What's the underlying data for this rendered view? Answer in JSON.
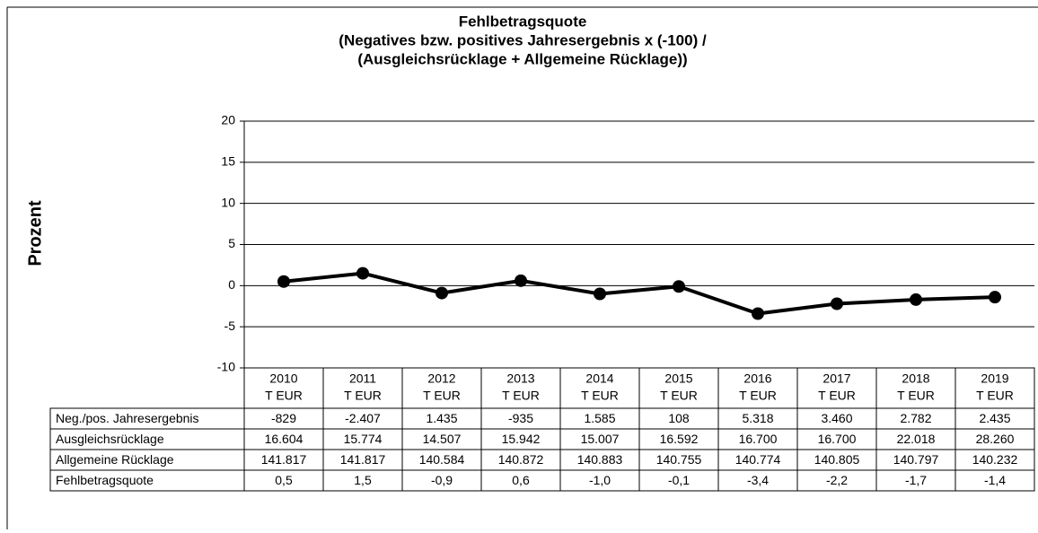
{
  "chart_data": {
    "type": "line",
    "title": "Fehlbetragsquote",
    "subtitle": [
      "(Negatives bzw. positives Jahresergebnis  x (-100) /",
      "(Ausgleichsrücklage + Allgemeine Rücklage))"
    ],
    "y_label": "Prozent",
    "categories": [
      "2010",
      "2011",
      "2012",
      "2013",
      "2014",
      "2015",
      "2016",
      "2017",
      "2018",
      "2019"
    ],
    "category_unit": "T EUR",
    "series": [
      {
        "name": "Fehlbetragsquote",
        "color": "#000000",
        "values": [
          0.5,
          1.5,
          -0.9,
          0.6,
          -1.0,
          -0.1,
          -3.4,
          -2.2,
          -1.7,
          -1.4
        ],
        "value_labels": [
          "0,5",
          "1,5",
          "-0,9",
          "0,6",
          "-1,0",
          "-0,1",
          "-3,4",
          "-2,2",
          "-1,7",
          "-1,4"
        ]
      }
    ],
    "ylim": [
      -10,
      20
    ],
    "yticks": [
      -10,
      -5,
      0,
      5,
      10,
      15,
      20
    ],
    "grid": true,
    "table": {
      "rows": [
        {
          "label": "Neg./pos. Jahresergebnis",
          "values": [
            "-829",
            "-2.407",
            "1.435",
            "-935",
            "1.585",
            "108",
            "5.318",
            "3.460",
            "2.782",
            "2.435"
          ]
        },
        {
          "label": "Ausgleichsrücklage",
          "values": [
            "16.604",
            "15.774",
            "14.507",
            "15.942",
            "15.007",
            "16.592",
            "16.700",
            "16.700",
            "22.018",
            "28.260"
          ]
        },
        {
          "label": "Allgemeine Rücklage",
          "values": [
            "141.817",
            "141.817",
            "140.584",
            "140.872",
            "140.883",
            "140.755",
            "140.774",
            "140.805",
            "140.797",
            "140.232"
          ]
        }
      ]
    }
  }
}
